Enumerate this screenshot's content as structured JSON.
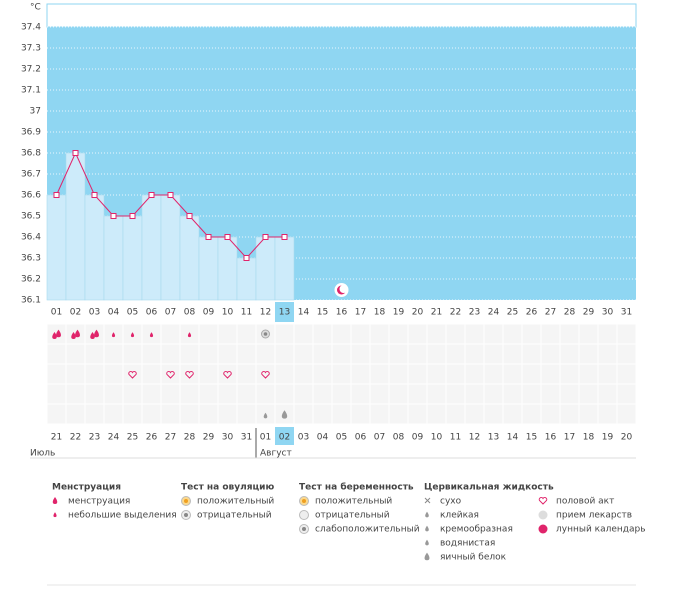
{
  "chart_data": {
    "type": "line",
    "y_unit": "°C",
    "categories": [
      "01",
      "02",
      "03",
      "04",
      "05",
      "06",
      "07",
      "08",
      "09",
      "10",
      "11",
      "12",
      "13",
      "14",
      "15",
      "16",
      "17",
      "18",
      "19",
      "20",
      "21",
      "22",
      "23",
      "24",
      "25",
      "26",
      "27",
      "28",
      "29",
      "30",
      "31"
    ],
    "series": [
      {
        "color": "#e0246b",
        "values": [
          36.6,
          36.8,
          36.6,
          36.5,
          36.5,
          36.6,
          36.6,
          36.5,
          36.4,
          36.4,
          36.3,
          36.4,
          36.4,
          null,
          null,
          null,
          null,
          null,
          null,
          null,
          null,
          null,
          null,
          null,
          null,
          null,
          null,
          null,
          null,
          null,
          null
        ]
      }
    ],
    "bar_color": "#cdebfa",
    "background_color": "#8fd6f2",
    "highlight_color": "#8fd6f2",
    "ylim": [
      36.1,
      37.4
    ],
    "yticks": [
      36.1,
      36.2,
      36.3,
      36.4,
      36.5,
      36.6,
      36.7,
      36.8,
      36.9,
      37,
      37.1,
      37.2,
      37.3,
      37.4
    ],
    "grid": true
  },
  "calendar": {
    "dates": [
      "21",
      "22",
      "23",
      "24",
      "25",
      "26",
      "27",
      "28",
      "29",
      "30",
      "31",
      "01",
      "02",
      "03",
      "04",
      "05",
      "06",
      "07",
      "08",
      "09",
      "10",
      "11",
      "12",
      "13",
      "14",
      "15",
      "16",
      "17",
      "18",
      "19",
      "20"
    ],
    "date_colors": [
      "#d6336c",
      "#d6336c",
      "#d6336c",
      "#555555",
      "#555555",
      "#555555",
      "#d6336c",
      "#d6336c",
      "#555555",
      "#555555",
      "#555555",
      "#555555",
      "#555555",
      "#d6336c",
      "#d6336c",
      "#555555",
      "#555555",
      "#555555",
      "#555555",
      "#555555",
      "#d6336c",
      "#d6336c",
      "#555555",
      "#555555",
      "#555555",
      "#555555",
      "#555555",
      "#d6336c",
      "#d6336c",
      "#555555",
      "#555555"
    ],
    "months": [
      "Июль",
      "Август"
    ]
  },
  "legend": {
    "groups": [
      {
        "title": "Менструация",
        "items": [
          "менструация",
          "небольшие выделения"
        ]
      },
      {
        "title": "Тест на овуляцию",
        "items": [
          "положительный",
          "отрицательный"
        ]
      },
      {
        "title": "Тест на беременность",
        "items": [
          "положительный",
          "отрицательный",
          "слабоположительный"
        ]
      },
      {
        "title": "Цервикальная жидкость",
        "items": [
          "сухо",
          "клейкая",
          "кремообразная",
          "водянистая",
          "яичный белок"
        ]
      },
      {
        "items": [
          "половой акт",
          "прием лекарств",
          "лунный календарь"
        ]
      }
    ]
  }
}
